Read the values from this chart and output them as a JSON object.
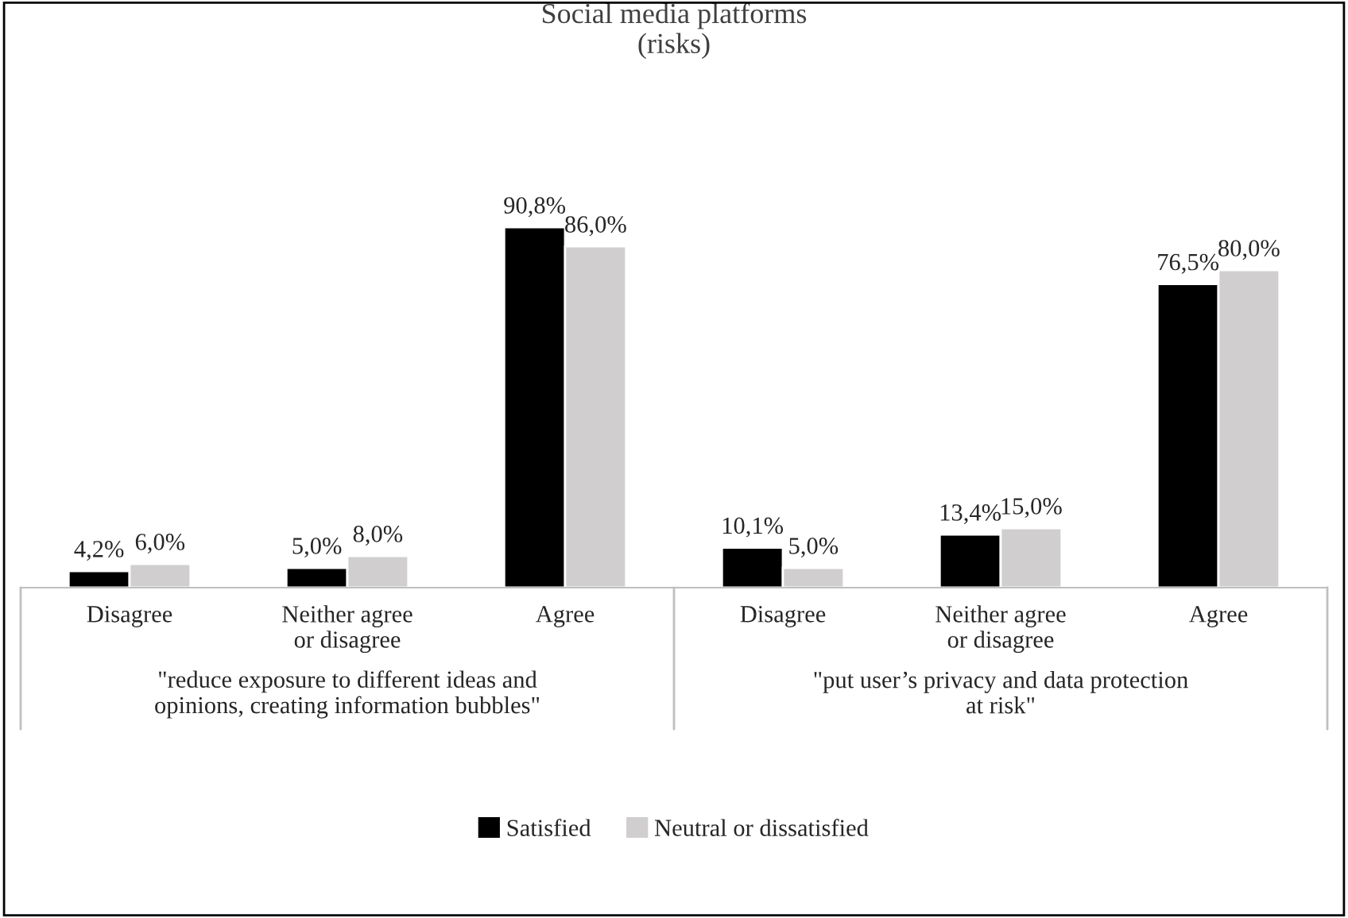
{
  "chart_data": {
    "type": "bar",
    "title": "Social media platforms\n(risks)",
    "categories": [
      "Disagree",
      "Neither agree\nor disagree",
      "Agree",
      "Disagree",
      "Neither agree\nor disagree",
      "Agree"
    ],
    "series": [
      {
        "name": "Satisfied",
        "color": "#000000",
        "values": [
          4.2,
          5.0,
          90.8,
          10.1,
          13.4,
          76.5
        ],
        "value_labels": [
          "4,2%",
          "5,0%",
          "90,8%",
          "10,1%",
          "13,4%",
          "76,5%"
        ]
      },
      {
        "name": "Neutral or dissatisfied",
        "color": "#d0cece",
        "values": [
          6.0,
          8.0,
          86.0,
          5.0,
          15.0,
          80.0
        ],
        "value_labels": [
          "6,0%",
          "8,0%",
          "86,0%",
          "5,0%",
          "15,0%",
          "80,0%"
        ]
      }
    ],
    "annotations": [
      "\"reduce exposure to different ideas and\nopinions, creating information bubbles\"",
      "\"put user’s privacy and data protection\nat risk\""
    ],
    "legend": "bottom",
    "grid": false
  }
}
